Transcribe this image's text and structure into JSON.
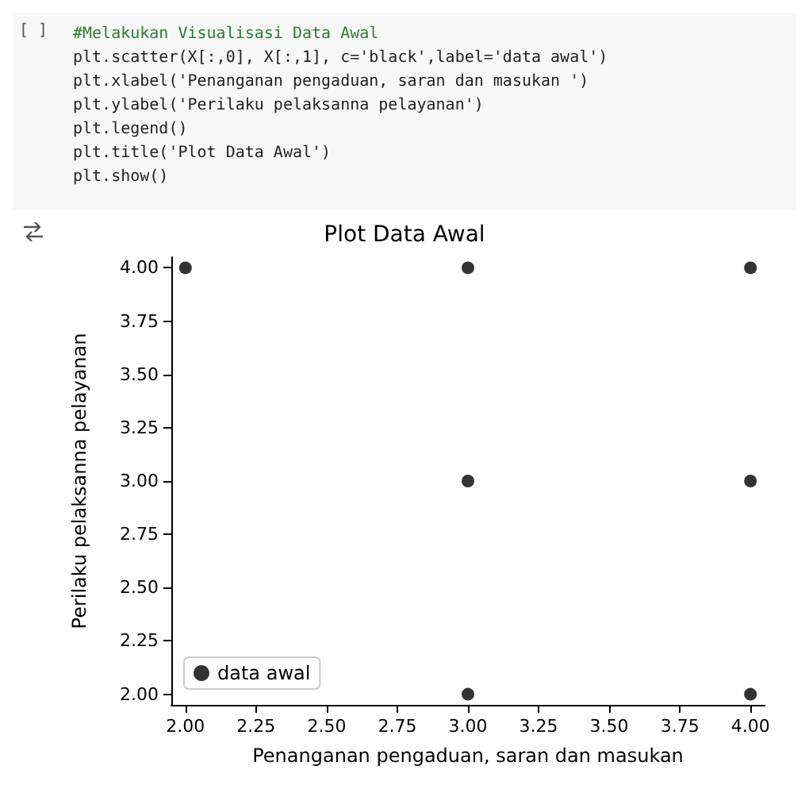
{
  "chart_data": {
    "type": "scatter",
    "title": "Plot Data Awal",
    "xlabel": "Penanganan pengaduan, saran dan masukan",
    "ylabel": "Perilaku pelaksanna pelayanan",
    "annotations": [
      "[ ]",
      "#Melakukan Visualisasi Data Awal",
      "plt.scatter(X[:,0], X[:,1], c='black',label='data awal')",
      "plt.xlabel('Penanganan pengaduan, saran dan masukan ')",
      "plt.ylabel('Perilaku pelaksanna pelayanan')",
      "plt.legend()",
      "plt.title('Plot Data Awal')",
      "plt.show()"
    ],
    "series": [
      {
        "name": "data awal",
        "color": "#000000",
        "x": [
          2,
          3,
          3,
          3,
          4,
          4,
          4
        ],
        "values": [
          4,
          4,
          3,
          2,
          4,
          3,
          2
        ]
      }
    ],
    "xlim": [
      1.95,
      4.05
    ],
    "ylim": [
      1.95,
      4.05
    ],
    "xticks": [
      {
        "value": 2,
        "label": "2.00"
      },
      {
        "value": 2.25,
        "label": "2.25"
      },
      {
        "value": 2.5,
        "label": "2.50"
      },
      {
        "value": 2.75,
        "label": "2.75"
      },
      {
        "value": 3,
        "label": "3.00"
      },
      {
        "value": 3.25,
        "label": "3.25"
      },
      {
        "value": 3.5,
        "label": "3.50"
      },
      {
        "value": 3.75,
        "label": "3.75"
      },
      {
        "value": 4,
        "label": "4.00"
      }
    ],
    "yticks": [
      {
        "value": 2,
        "label": "2.00"
      },
      {
        "value": 2.25,
        "label": "2.25"
      },
      {
        "value": 2.5,
        "label": "2.50"
      },
      {
        "value": 2.75,
        "label": "2.75"
      },
      {
        "value": 3,
        "label": "3.00"
      },
      {
        "value": 3.25,
        "label": "3.25"
      },
      {
        "value": 3.5,
        "label": "3.50"
      },
      {
        "value": 3.75,
        "label": "3.75"
      },
      {
        "value": 4,
        "label": "4.00"
      }
    ],
    "legend": "bottom left",
    "marker": "circle",
    "grid": false
  }
}
